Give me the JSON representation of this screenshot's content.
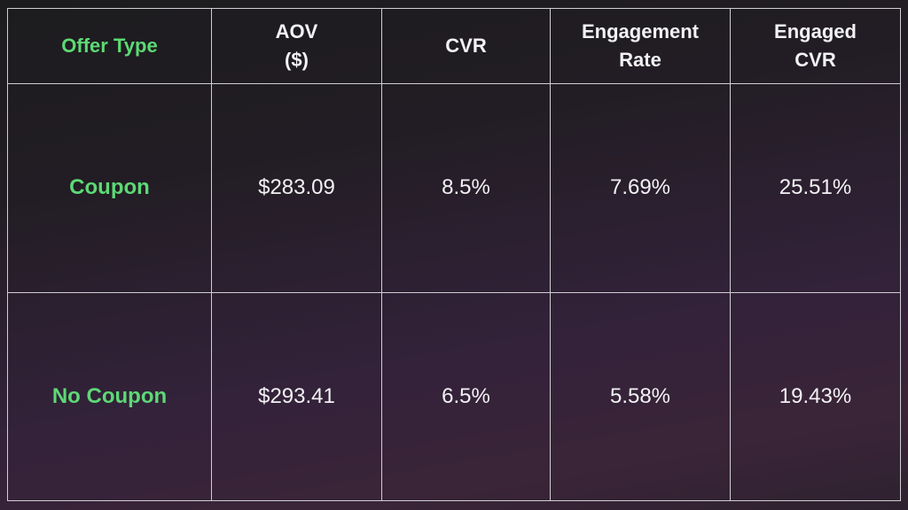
{
  "colors": {
    "header_label": "#5dd975",
    "row_label": "#5dd975",
    "text": "#f2f2f4",
    "border": "#cfcfd3"
  },
  "chart_data": {
    "type": "table",
    "columns": [
      "Offer Type",
      "AOV\n($)",
      "CVR",
      "Engagement\nRate",
      "Engaged\nCVR"
    ],
    "rows": [
      [
        "Coupon",
        "$283.09",
        "8.5%",
        "7.69%",
        "25.51%"
      ],
      [
        "No Coupon",
        "$293.41",
        "6.5%",
        "5.58%",
        "19.43%"
      ]
    ]
  }
}
